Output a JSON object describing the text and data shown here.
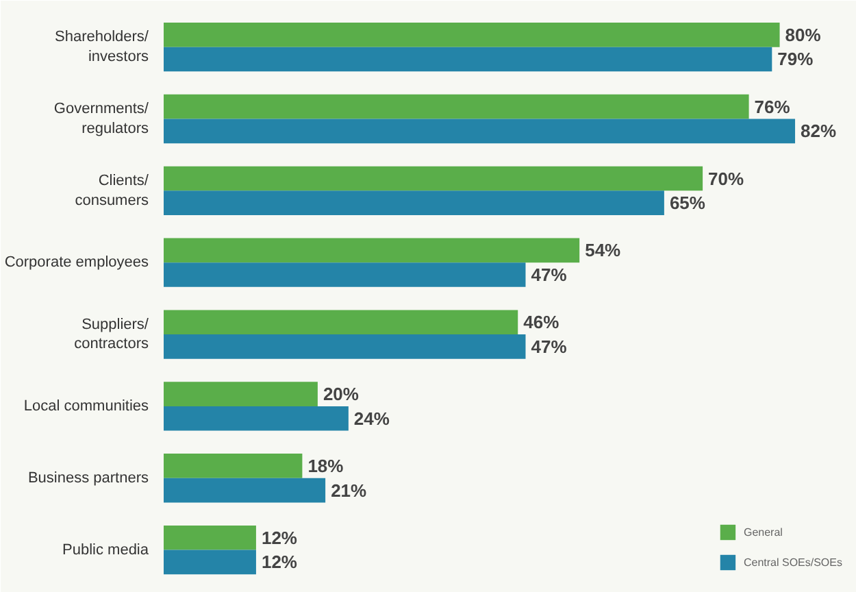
{
  "chart_data": {
    "type": "bar",
    "orientation": "horizontal",
    "categories": [
      "Shareholders/\ninvestors",
      "Governments/\nregulators",
      "Clients/\nconsumers",
      "Corporate employees",
      "Suppliers/\ncontractors",
      "Local communities",
      "Business partners",
      "Public media"
    ],
    "series": [
      {
        "name": "General",
        "color": "#5aae4a",
        "values": [
          80,
          76,
          70,
          54,
          46,
          20,
          18,
          12
        ],
        "value_labels": [
          "80%",
          "76%",
          "70%",
          "54%",
          "46%",
          "20%",
          "18%",
          "12%"
        ]
      },
      {
        "name": "Central SOEs/SOEs",
        "color": "#2484a8",
        "values": [
          79,
          82,
          65,
          47,
          47,
          24,
          21,
          12
        ],
        "value_labels": [
          "79%",
          "82%",
          "65%",
          "47%",
          "47%",
          "24%",
          "21%",
          "12%"
        ]
      }
    ],
    "xlim": [
      0,
      90
    ],
    "tick_labels": "y",
    "grid": false,
    "legend": "bottom right"
  }
}
